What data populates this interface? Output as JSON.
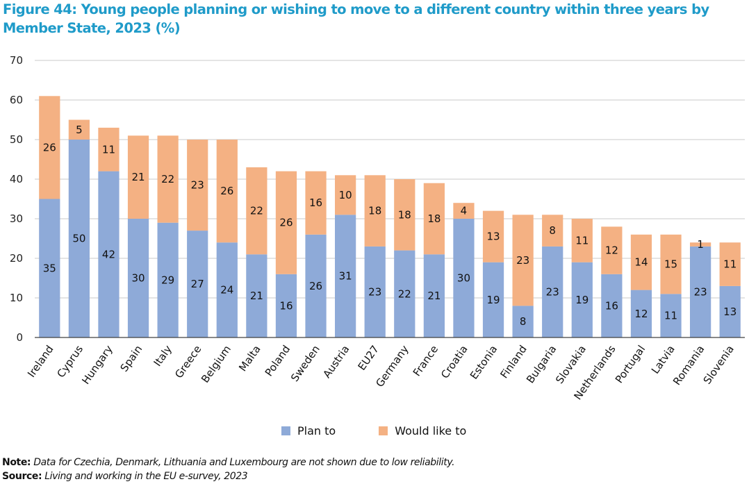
{
  "title": "Figure 44: Young people planning or wishing to move to a different country within three years by Member State, 2023 (%)",
  "colors": {
    "title": "#1f9bc9",
    "plan_to": "#8eaad8",
    "would_like_to": "#f4b183",
    "grid": "#c8c8c8",
    "axis": "#404040"
  },
  "legend": {
    "plan_to": "Plan to",
    "would_like_to": "Would like to"
  },
  "notes": {
    "note_label": "Note:",
    "note_text": "Data for Czechia, Denmark, Lithuania and Luxembourg are not shown due to low reliability.",
    "source_label": "Source:",
    "source_text": "Living and working in the EU e-survey, 2023"
  },
  "chart_data": {
    "type": "bar",
    "stacked": true,
    "title": "Figure 44: Young people planning or wishing to move to a different country within three years by Member State, 2023 (%)",
    "xlabel": "",
    "ylabel": "",
    "ylim": [
      0,
      70
    ],
    "yticks": [
      0,
      10,
      20,
      30,
      40,
      50,
      60,
      70
    ],
    "grid": true,
    "legend_position": "bottom",
    "categories": [
      "Ireland",
      "Cyprus",
      "Hungary",
      "Spain",
      "Italy",
      "Greece",
      "Belgium",
      "Malta",
      "Poland",
      "Sweden",
      "Austria",
      "EU27",
      "Germany",
      "France",
      "Croatia",
      "Estonia",
      "Finland",
      "Bulgaria",
      "Slovakia",
      "Netherlands",
      "Portugal",
      "Latvia",
      "Romania",
      "Slovenia"
    ],
    "series": [
      {
        "name": "Plan to",
        "values": [
          35,
          50,
          42,
          30,
          29,
          27,
          24,
          21,
          16,
          26,
          31,
          23,
          22,
          21,
          30,
          19,
          8,
          23,
          19,
          16,
          12,
          11,
          23,
          13
        ]
      },
      {
        "name": "Would like to",
        "values": [
          26,
          5,
          11,
          21,
          22,
          23,
          26,
          22,
          26,
          16,
          10,
          18,
          18,
          18,
          4,
          13,
          23,
          8,
          11,
          12,
          14,
          15,
          1,
          11
        ]
      }
    ],
    "plot_heights_note": "Bars drawn at unrounded heights in source; labels are rounded percentages"
  }
}
